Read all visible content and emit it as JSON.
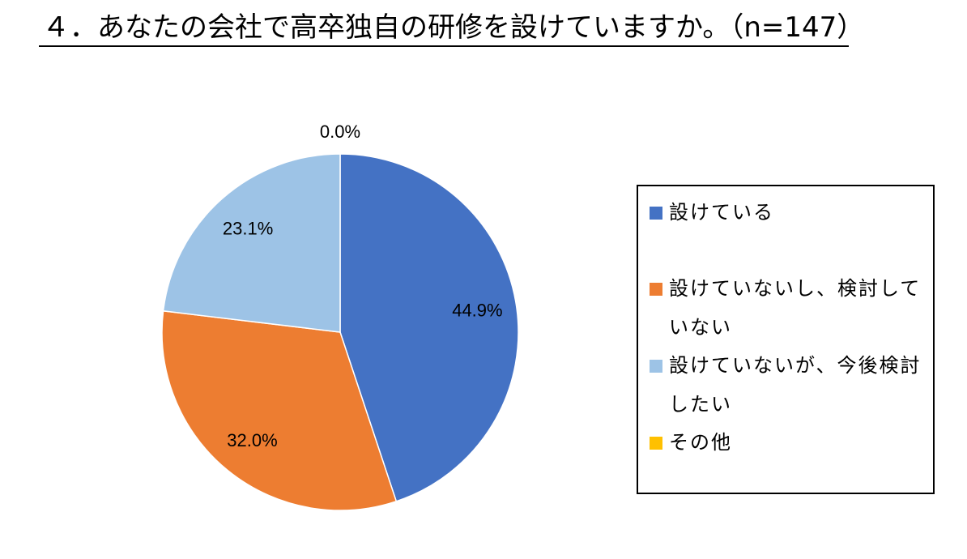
{
  "chart_data": {
    "type": "pie",
    "title": "４．あなたの会社で高卒独自の研修を設けていますか。（n=147）",
    "start_angle_deg": 0,
    "direction": "clockwise",
    "series": [
      {
        "name": "設けている",
        "value": 44.9,
        "label": "44.9%",
        "color": "#4472C4"
      },
      {
        "name": "設けていないし、検討していない",
        "value": 32.0,
        "label": "32.0%",
        "color": "#ED7D31"
      },
      {
        "name": "設けていないが、今後検討したい",
        "value": 23.1,
        "label": "23.1%",
        "color": "#9DC3E6"
      },
      {
        "name": "その他",
        "value": 0.0,
        "label": "0.0%",
        "color": "#FFC000"
      }
    ],
    "legend": {
      "position": "right",
      "entries": [
        "設けている",
        "設けていないし、検討していない",
        "設けていないが、今後検討したい",
        "その他"
      ]
    }
  }
}
